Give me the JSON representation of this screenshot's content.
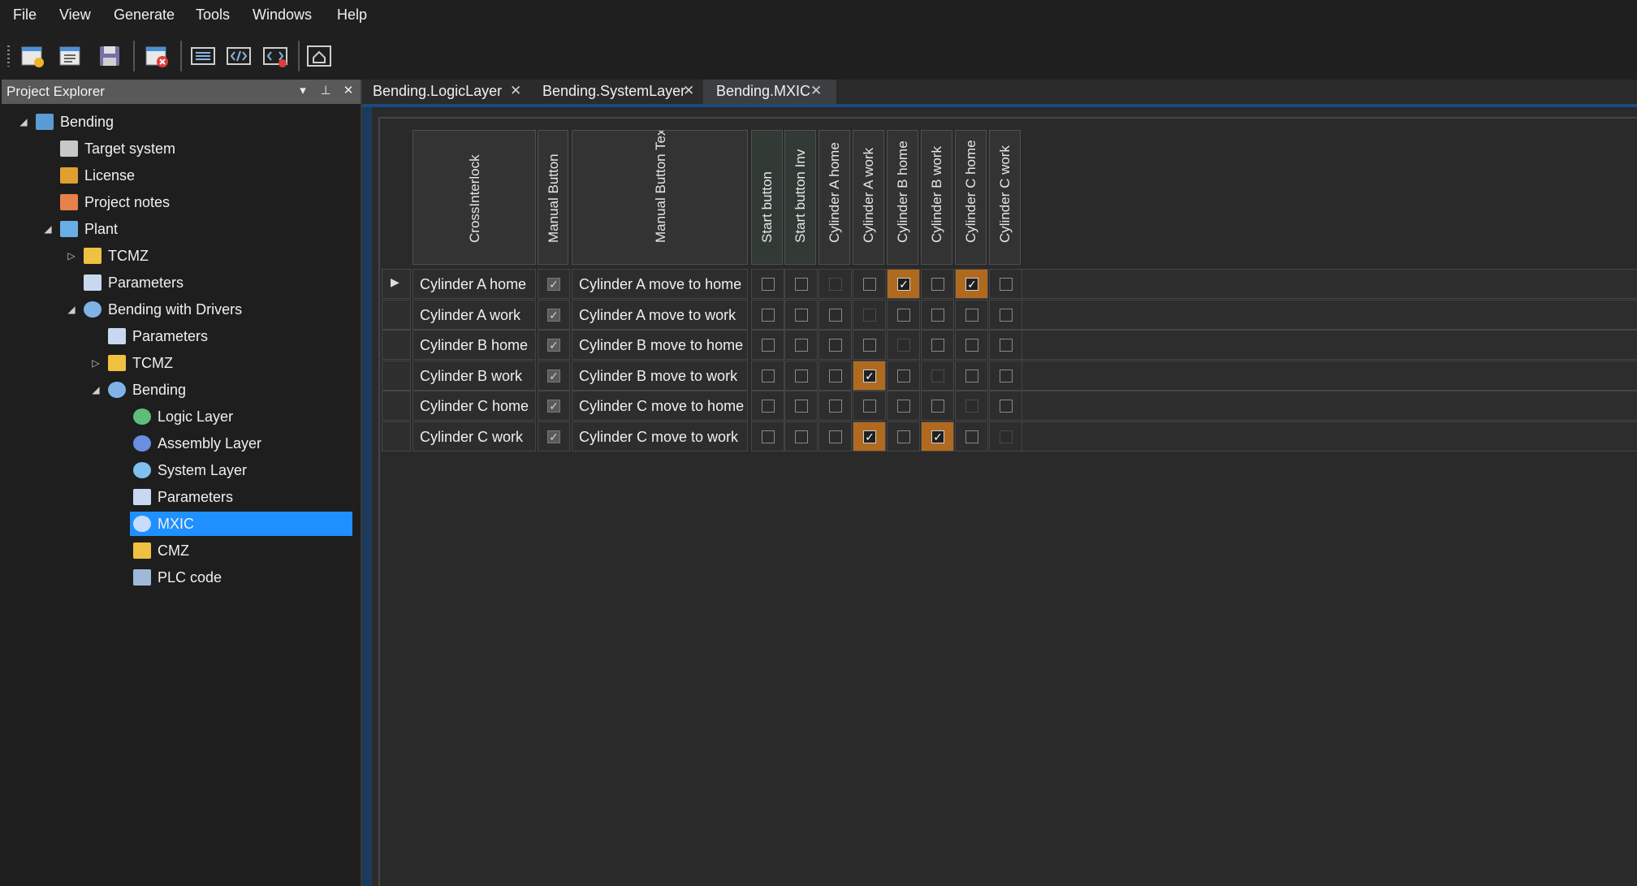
{
  "menu": [
    "File",
    "View",
    "Generate",
    "Tools",
    "Windows",
    "Help"
  ],
  "toolbar": {
    "buttons": [
      "new-project-icon",
      "open-project-icon",
      "save-icon",
      "close-project-icon",
      "layer-view-icon",
      "code-view-icon",
      "code-delete-icon",
      "home-icon"
    ]
  },
  "explorer": {
    "title": "Project Explorer",
    "items": [
      {
        "label": "Bending",
        "icon": "project-icon"
      },
      {
        "label": "Target system",
        "icon": "target-system-icon"
      },
      {
        "label": "License",
        "icon": "key-icon"
      },
      {
        "label": "Project notes",
        "icon": "notes-icon"
      },
      {
        "label": "Plant",
        "icon": "plant-icon"
      },
      {
        "label": "TCMZ",
        "icon": "folder-icon"
      },
      {
        "label": "Parameters",
        "icon": "parameters-icon"
      },
      {
        "label": "Bending with Drivers",
        "icon": "module-icon"
      },
      {
        "label": "Parameters",
        "icon": "parameters-icon"
      },
      {
        "label": "TCMZ",
        "icon": "folder-icon"
      },
      {
        "label": "Bending",
        "icon": "module-icon"
      },
      {
        "label": "Logic Layer",
        "icon": "logic-layer-icon"
      },
      {
        "label": "Assembly Layer",
        "icon": "assembly-layer-icon"
      },
      {
        "label": "System Layer",
        "icon": "system-layer-icon"
      },
      {
        "label": "Parameters",
        "icon": "parameters-icon"
      },
      {
        "label": "MXIC",
        "icon": "mxic-icon"
      },
      {
        "label": "CMZ",
        "icon": "folder-icon"
      },
      {
        "label": "PLC code",
        "icon": "plc-code-icon"
      }
    ]
  },
  "tabs": [
    {
      "label": "Bending.LogicLayer",
      "active": false
    },
    {
      "label": "Bending.SystemLayer",
      "active": false
    },
    {
      "label": "Bending.MXIC",
      "active": true
    }
  ],
  "grid": {
    "fixed_headers": [
      "CrossInterlock",
      "Manual Button",
      "Manual Button Text"
    ],
    "interlock_headers": [
      "Start button",
      "Start button Inv",
      "Cylinder A home",
      "Cylinder A work",
      "Cylinder B home",
      "Cylinder B work",
      "Cylinder C home",
      "Cylinder C work"
    ],
    "rows": [
      {
        "name": "Cylinder A home",
        "manual": true,
        "text": "Cylinder A move to home",
        "checks": [
          0,
          0,
          2,
          0,
          1,
          0,
          1,
          0
        ]
      },
      {
        "name": "Cylinder A work",
        "manual": true,
        "text": "Cylinder A move to work",
        "checks": [
          0,
          0,
          0,
          2,
          0,
          0,
          0,
          0
        ]
      },
      {
        "name": "Cylinder B home",
        "manual": true,
        "text": "Cylinder B move to home",
        "checks": [
          0,
          0,
          0,
          0,
          2,
          0,
          0,
          0
        ]
      },
      {
        "name": "Cylinder B work",
        "manual": true,
        "text": "Cylinder B move to work",
        "checks": [
          0,
          0,
          0,
          1,
          0,
          2,
          0,
          0
        ]
      },
      {
        "name": "Cylinder C home",
        "manual": true,
        "text": "Cylinder C move to home",
        "checks": [
          0,
          0,
          0,
          0,
          0,
          0,
          2,
          0
        ]
      },
      {
        "name": "Cylinder C work",
        "manual": true,
        "text": "Cylinder C move to work",
        "checks": [
          0,
          0,
          0,
          1,
          0,
          1,
          0,
          2
        ]
      }
    ],
    "highlight_color": "#b06a20",
    "selection_color": "#1e90ff"
  }
}
